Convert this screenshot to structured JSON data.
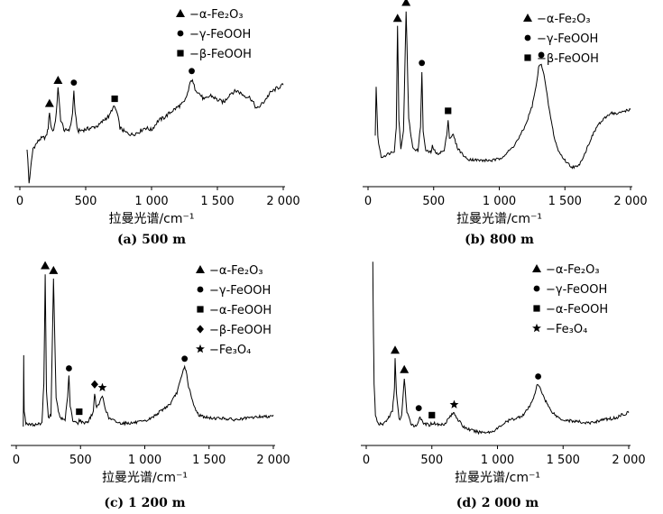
{
  "chart_data": [
    {
      "type": "line",
      "caption": "(a) 500 m",
      "xlabel": "拉曼光谱/cm⁻¹",
      "xticks": [
        "0",
        "500",
        "1 000",
        "1 500",
        "2 000"
      ],
      "xlim": [
        0,
        2000
      ],
      "legend": [
        {
          "marker": "triangle",
          "label": "−α-Fe₂O₃"
        },
        {
          "marker": "circle",
          "label": "−γ-FeOOH"
        },
        {
          "marker": "square",
          "label": "−β-FeOOH"
        }
      ],
      "peaks": [
        {
          "x": 225,
          "marker": "triangle"
        },
        {
          "x": 290,
          "marker": "triangle"
        },
        {
          "x": 410,
          "marker": "circle"
        },
        {
          "x": 720,
          "marker": "square"
        },
        {
          "x": 1305,
          "marker": "circle"
        }
      ],
      "x": [
        55,
        70,
        100,
        150,
        200,
        215,
        225,
        235,
        250,
        270,
        290,
        310,
        340,
        380,
        400,
        410,
        420,
        440,
        480,
        550,
        600,
        650,
        680,
        700,
        720,
        740,
        760,
        800,
        850,
        900,
        950,
        1000,
        1050,
        1100,
        1150,
        1200,
        1250,
        1280,
        1300,
        1310,
        1330,
        1360,
        1400,
        1450,
        1500,
        1550,
        1600,
        1650,
        1700,
        1750,
        1800,
        1850,
        1900,
        1950,
        2000
      ],
      "y": [
        0.3,
        0.0,
        0.3,
        0.38,
        0.4,
        0.48,
        0.62,
        0.5,
        0.45,
        0.52,
        0.82,
        0.55,
        0.45,
        0.47,
        0.6,
        0.8,
        0.6,
        0.45,
        0.46,
        0.48,
        0.5,
        0.56,
        0.58,
        0.64,
        0.66,
        0.6,
        0.48,
        0.44,
        0.42,
        0.44,
        0.48,
        0.46,
        0.54,
        0.57,
        0.62,
        0.66,
        0.7,
        0.8,
        0.9,
        0.88,
        0.82,
        0.78,
        0.72,
        0.76,
        0.72,
        0.7,
        0.78,
        0.8,
        0.76,
        0.74,
        0.64,
        0.7,
        0.78,
        0.82,
        0.85
      ]
    },
    {
      "type": "line",
      "caption": "(b) 800 m",
      "xlabel": "拉曼光谱/cm⁻¹",
      "xticks": [
        "0",
        "500",
        "1 000",
        "1 500",
        "2 000"
      ],
      "xlim": [
        0,
        2000
      ],
      "legend": [
        {
          "marker": "triangle",
          "label": "−α-Fe₂O₃"
        },
        {
          "marker": "circle",
          "label": "−γ-FeOOH"
        },
        {
          "marker": "square",
          "label": "−β-FeOOH"
        }
      ],
      "peaks": [
        {
          "x": 225,
          "marker": "triangle"
        },
        {
          "x": 290,
          "marker": "triangle"
        },
        {
          "x": 410,
          "marker": "circle"
        },
        {
          "x": 610,
          "marker": "square"
        },
        {
          "x": 1320,
          "marker": "circle"
        }
      ],
      "x": [
        55,
        62,
        75,
        100,
        150,
        200,
        215,
        225,
        235,
        250,
        270,
        290,
        310,
        340,
        380,
        400,
        410,
        420,
        440,
        480,
        490,
        520,
        580,
        600,
        610,
        620,
        650,
        680,
        750,
        850,
        950,
        1000,
        1050,
        1100,
        1150,
        1200,
        1250,
        1280,
        1300,
        1320,
        1340,
        1380,
        1420,
        1450,
        1500,
        1550,
        1600,
        1650,
        1700,
        1750,
        1800,
        1850,
        1900,
        1950,
        2000
      ],
      "y": [
        0.2,
        0.5,
        0.18,
        0.06,
        0.08,
        0.1,
        0.25,
        0.88,
        0.3,
        0.12,
        0.22,
        0.98,
        0.3,
        0.12,
        0.1,
        0.25,
        0.6,
        0.22,
        0.1,
        0.09,
        0.13,
        0.08,
        0.1,
        0.2,
        0.3,
        0.18,
        0.2,
        0.12,
        0.05,
        0.04,
        0.04,
        0.05,
        0.08,
        0.12,
        0.18,
        0.26,
        0.38,
        0.5,
        0.62,
        0.65,
        0.58,
        0.36,
        0.18,
        0.1,
        0.04,
        0.0,
        0.0,
        0.08,
        0.18,
        0.26,
        0.3,
        0.34,
        0.33,
        0.35,
        0.36
      ]
    },
    {
      "type": "line",
      "caption": "(c) 1 200 m",
      "xlabel": "拉曼光谱/cm⁻¹",
      "xticks": [
        "0",
        "500",
        "1 000",
        "1 500",
        "2 000"
      ],
      "xlim": [
        0,
        2000
      ],
      "legend": [
        {
          "marker": "triangle",
          "label": "−α-Fe₂O₃"
        },
        {
          "marker": "circle",
          "label": "−γ-FeOOH"
        },
        {
          "marker": "square",
          "label": "−α-FeOOH"
        },
        {
          "marker": "diamond",
          "label": "−β-FeOOH"
        },
        {
          "marker": "star",
          "label": "−Fe₃O₄"
        }
      ],
      "peaks": [
        {
          "x": 225,
          "marker": "triangle"
        },
        {
          "x": 290,
          "marker": "triangle"
        },
        {
          "x": 410,
          "marker": "circle"
        },
        {
          "x": 490,
          "marker": "square"
        },
        {
          "x": 610,
          "marker": "diamond"
        },
        {
          "x": 670,
          "marker": "star"
        },
        {
          "x": 1310,
          "marker": "circle"
        }
      ],
      "x": [
        55,
        58,
        62,
        75,
        100,
        150,
        200,
        215,
        225,
        235,
        250,
        270,
        290,
        310,
        340,
        380,
        400,
        410,
        420,
        440,
        480,
        490,
        520,
        560,
        600,
        610,
        625,
        650,
        670,
        690,
        720,
        800,
        900,
        1000,
        1050,
        1100,
        1150,
        1200,
        1250,
        1280,
        1300,
        1310,
        1320,
        1340,
        1380,
        1420,
        1500,
        1600,
        1700,
        1800,
        1900,
        1950,
        2000
      ],
      "y": [
        0.02,
        0.48,
        0.12,
        0.05,
        0.04,
        0.04,
        0.05,
        0.3,
        0.98,
        0.25,
        0.08,
        0.1,
        0.95,
        0.2,
        0.08,
        0.07,
        0.22,
        0.34,
        0.16,
        0.06,
        0.05,
        0.07,
        0.05,
        0.06,
        0.12,
        0.24,
        0.14,
        0.18,
        0.22,
        0.15,
        0.08,
        0.05,
        0.05,
        0.06,
        0.08,
        0.11,
        0.14,
        0.17,
        0.24,
        0.32,
        0.38,
        0.4,
        0.38,
        0.28,
        0.16,
        0.1,
        0.08,
        0.08,
        0.07,
        0.08,
        0.09,
        0.09,
        0.1
      ]
    },
    {
      "type": "line",
      "caption": "(d) 2 000 m",
      "xlabel": "拉曼光谱/cm⁻¹",
      "xticks": [
        "0",
        "500",
        "1 000",
        "1 500",
        "2 000"
      ],
      "xlim": [
        0,
        2000
      ],
      "legend": [
        {
          "marker": "triangle",
          "label": "−α-Fe₂O₃"
        },
        {
          "marker": "circle",
          "label": "−γ-FeOOH"
        },
        {
          "marker": "square",
          "label": "−α-FeOOH"
        },
        {
          "marker": "star",
          "label": "−Fe₃O₄"
        }
      ],
      "peaks": [
        {
          "x": 220,
          "marker": "triangle"
        },
        {
          "x": 290,
          "marker": "triangle"
        },
        {
          "x": 400,
          "marker": "circle"
        },
        {
          "x": 500,
          "marker": "square"
        },
        {
          "x": 670,
          "marker": "star"
        },
        {
          "x": 1310,
          "marker": "circle"
        }
      ],
      "x": [
        50,
        55,
        60,
        70,
        90,
        120,
        160,
        200,
        215,
        220,
        230,
        250,
        270,
        290,
        310,
        340,
        380,
        400,
        410,
        430,
        480,
        500,
        520,
        560,
        600,
        640,
        670,
        700,
        740,
        800,
        850,
        900,
        950,
        1000,
        1050,
        1100,
        1150,
        1200,
        1250,
        1280,
        1300,
        1310,
        1330,
        1360,
        1400,
        1450,
        1500,
        1600,
        1700,
        1800,
        1900,
        1950,
        2000
      ],
      "y": [
        1.0,
        0.6,
        0.3,
        0.12,
        0.08,
        0.07,
        0.1,
        0.15,
        0.28,
        0.45,
        0.25,
        0.1,
        0.12,
        0.34,
        0.14,
        0.08,
        0.06,
        0.1,
        0.12,
        0.08,
        0.07,
        0.08,
        0.08,
        0.07,
        0.08,
        0.12,
        0.14,
        0.1,
        0.06,
        0.04,
        0.03,
        0.03,
        0.03,
        0.05,
        0.08,
        0.1,
        0.11,
        0.13,
        0.18,
        0.24,
        0.29,
        0.3,
        0.27,
        0.22,
        0.16,
        0.12,
        0.1,
        0.09,
        0.08,
        0.1,
        0.11,
        0.13,
        0.14
      ]
    }
  ]
}
